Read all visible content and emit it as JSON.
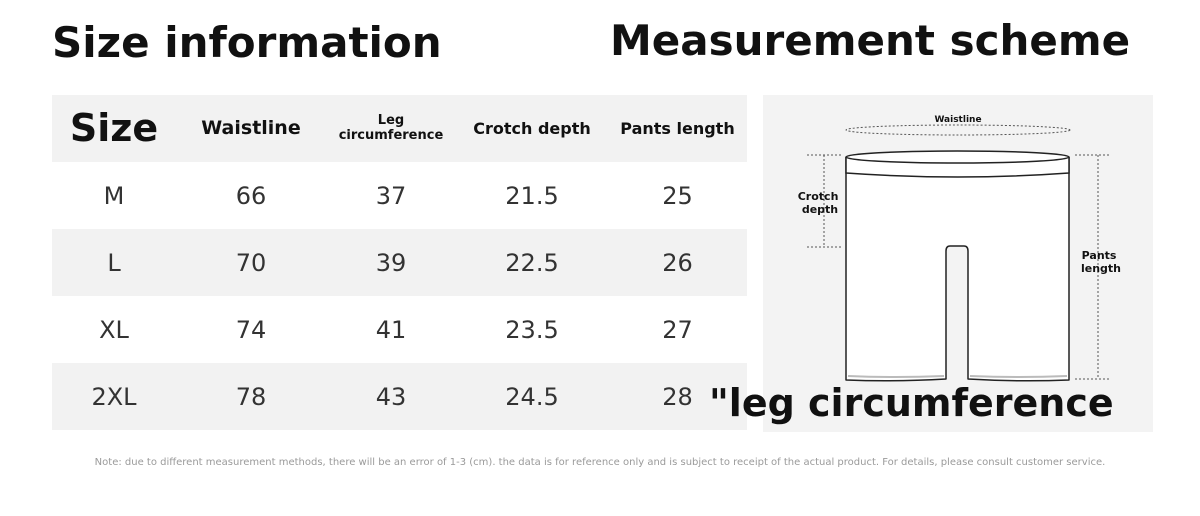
{
  "headings": {
    "size_information": "Size information",
    "measurement_scheme": "Measurement scheme"
  },
  "size_table": {
    "headers": [
      "Size",
      "Waistline",
      "Leg circumference",
      "Crotch depth",
      "Pants length"
    ],
    "rows": [
      [
        "M",
        "66",
        "37",
        "21.5",
        "25"
      ],
      [
        "L",
        "70",
        "39",
        "22.5",
        "26"
      ],
      [
        "XL",
        "74",
        "41",
        "23.5",
        "27"
      ],
      [
        "2XL",
        "78",
        "43",
        "24.5",
        "28"
      ]
    ]
  },
  "diagram": {
    "waistline_label": "Waistline",
    "crotch_depth_label": [
      "Crotch",
      "depth"
    ],
    "pants_length_label": [
      "Pants",
      "length"
    ],
    "leg_circumference_label": "\"leg circumference"
  },
  "note": "Note: due to different measurement methods, there will be an error of 1-3 (cm). the data is for reference only and is subject to receipt of the actual product. For details, please consult customer service."
}
